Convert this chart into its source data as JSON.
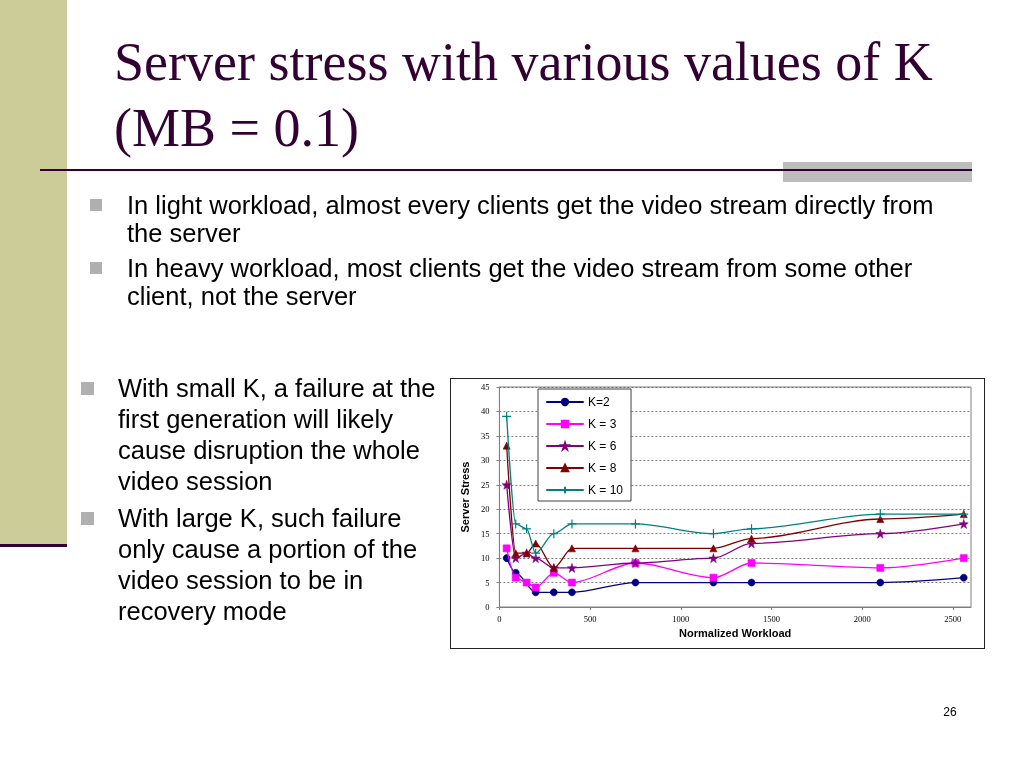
{
  "chart_data": {
    "type": "line",
    "title": "Server stress with various values of K (MB = 0.1)",
    "xlabel": "Normalized Workload",
    "ylabel": "Server Stress",
    "annotations": [
      "In light workload, almost every clients get the video stream directly from the server",
      "In heavy workload, most clients get the video stream from some other client, not the server",
      "With small K, a failure at the first generation will likely cause disruption the whole video session",
      "With large K, such failure only cause a portion of the video session to be in recovery mode",
      "26"
    ],
    "x": [
      40,
      90,
      150,
      200,
      300,
      400,
      750,
      1180,
      1390,
      2100,
      2560
    ],
    "series": [
      {
        "name": "K=2",
        "color": "#000080",
        "marker": "circle",
        "x": [
          40,
          90,
          200,
          300,
          400,
          750,
          1180,
          1390,
          2100,
          2560
        ],
        "values": [
          10,
          7,
          3,
          3,
          3,
          5,
          5,
          5,
          5,
          6
        ]
      },
      {
        "name": "K = 3",
        "color": "#ff00ff",
        "marker": "square",
        "values": [
          12,
          6,
          5,
          4,
          7,
          5,
          9,
          6,
          9,
          8,
          10
        ]
      },
      {
        "name": "K = 6",
        "color": "#800080",
        "marker": "star",
        "values": [
          25,
          10,
          11,
          10,
          8,
          8,
          9,
          10,
          13,
          15,
          17
        ]
      },
      {
        "name": "K = 8",
        "color": "#800000",
        "marker": "triangle",
        "values": [
          33,
          11,
          11,
          13,
          8,
          12,
          12,
          12,
          14,
          18,
          19
        ]
      },
      {
        "name": "K = 10",
        "color": "#008080",
        "marker": "cross",
        "values": [
          39,
          17,
          16,
          11,
          15,
          17,
          17,
          15,
          16,
          19,
          19
        ]
      }
    ],
    "xlim": [
      0,
      2600
    ],
    "xticks": [
      0,
      500,
      1000,
      1500,
      2000,
      2500
    ],
    "ylim": [
      0,
      45
    ],
    "yticks": [
      0,
      5,
      10,
      15,
      20,
      25,
      30,
      35,
      40,
      45
    ],
    "grid": "y",
    "legend": "top left"
  }
}
